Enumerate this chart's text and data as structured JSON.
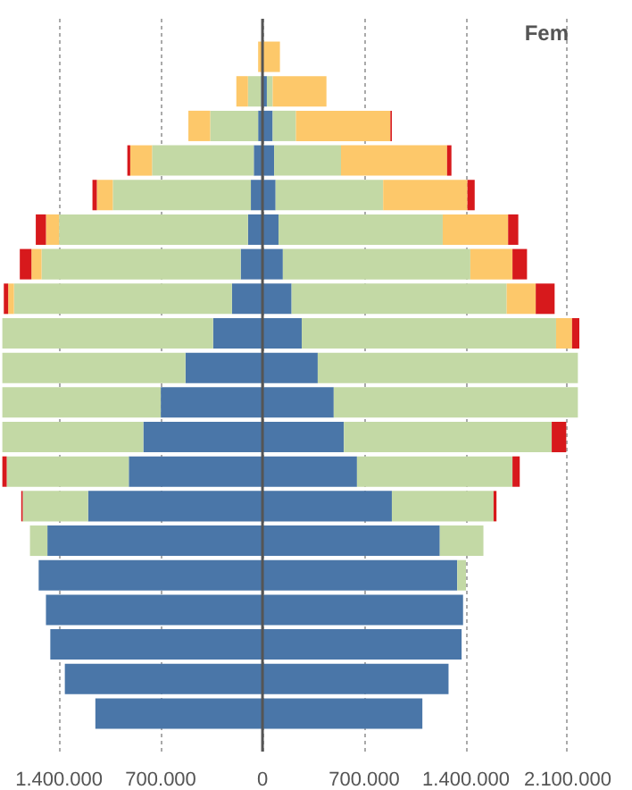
{
  "chart_data": {
    "type": "bar",
    "orientation": "horizontal",
    "stacked": true,
    "tick_labels": "x",
    "grid": "x",
    "categories": [
      null,
      null,
      null,
      null,
      null,
      null,
      null,
      null,
      null,
      null,
      null,
      null,
      null,
      null,
      null,
      null,
      null,
      null,
      null,
      null
    ],
    "series": [
      {
        "color": "#4a76a8",
        "values": [
          0,
          -10000,
          -30000,
          -60000,
          -80000,
          -100000,
          -150000,
          -210000,
          -340000,
          -530000,
          -700000,
          -820000,
          -920000,
          -1200000,
          -1480000,
          -1540000,
          -1490000,
          -1460000,
          -1360000,
          -1150000
        ]
      },
      {
        "color": "#c3d9a5",
        "values": [
          0,
          -90000,
          -330000,
          -700000,
          -950000,
          -1300000,
          -1370000,
          -1500000,
          -1450000,
          -1260000,
          -1090000,
          -970000,
          -840000,
          -450000,
          -120000,
          0,
          0,
          0,
          0,
          0
        ]
      },
      {
        "color": "#fdc86a",
        "values": [
          -30000,
          -80000,
          -150000,
          -150000,
          -110000,
          -90000,
          -70000,
          -40000,
          0,
          0,
          0,
          0,
          0,
          0,
          0,
          0,
          0,
          0,
          0,
          0
        ]
      },
      {
        "color": "#d7191c",
        "values": [
          0,
          0,
          0,
          -20000,
          -30000,
          -70000,
          -80000,
          -30000,
          0,
          0,
          0,
          0,
          -30000,
          -10000,
          0,
          0,
          0,
          0,
          0,
          0
        ]
      },
      {
        "color": "#4a76a8",
        "values": [
          0,
          30000,
          70000,
          80000,
          90000,
          110000,
          140000,
          200000,
          270000,
          380000,
          490000,
          560000,
          650000,
          890000,
          1220000,
          1340000,
          1380000,
          1370000,
          1280000,
          1100000
        ]
      },
      {
        "color": "#c3d9a5",
        "values": [
          0,
          40000,
          160000,
          460000,
          740000,
          1130000,
          1290000,
          1480000,
          1750000,
          1790000,
          1680000,
          1430000,
          1070000,
          700000,
          300000,
          60000,
          0,
          0,
          0,
          0
        ]
      },
      {
        "color": "#fdc86a",
        "values": [
          120000,
          370000,
          650000,
          730000,
          580000,
          450000,
          290000,
          200000,
          110000,
          0,
          0,
          0,
          0,
          0,
          0,
          0,
          0,
          0,
          0,
          0
        ]
      },
      {
        "color": "#d7191c",
        "values": [
          0,
          0,
          10000,
          30000,
          50000,
          70000,
          100000,
          130000,
          50000,
          0,
          0,
          100000,
          50000,
          20000,
          0,
          0,
          0,
          0,
          0,
          0
        ]
      }
    ],
    "xlim": [
      -1800000,
      2180000
    ],
    "xticks": [
      {
        "value": -1400000,
        "label": "1.400.000"
      },
      {
        "value": -700000,
        "label": "700.000"
      },
      0,
      {
        "value": 700000,
        "label": "700.000"
      },
      {
        "value": 1400000,
        "label": "1.400.000"
      },
      {
        "value": 2100000,
        "label": "2.100.000"
      }
    ],
    "ref_lines": [
      {
        "axis": "x",
        "value": 0,
        "color": "#555555"
      }
    ],
    "annotations": [
      "Fem"
    ]
  }
}
